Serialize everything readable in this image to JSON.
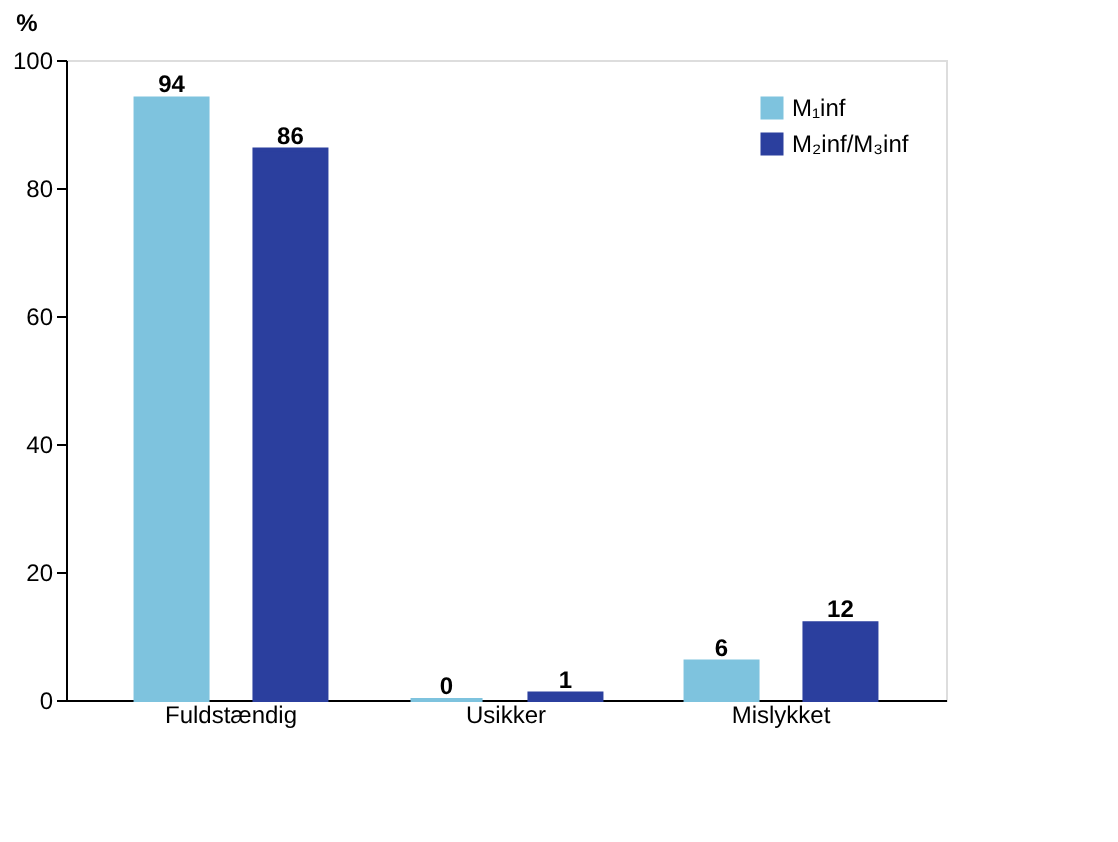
{
  "chart_data": {
    "type": "bar",
    "ylabel": "%",
    "categories": [
      "Fuldstændig",
      "Usikker",
      "Mislykket"
    ],
    "series": [
      {
        "name": "M₁inf",
        "color": "#7ec3de",
        "values": [
          94,
          0,
          6
        ]
      },
      {
        "name": "M₂inf/M₃inf",
        "color": "#2b3f9e",
        "values": [
          86,
          1,
          12
        ]
      }
    ],
    "ylim": [
      0,
      100
    ],
    "yticks": [
      0,
      20,
      40,
      60,
      80,
      100
    ],
    "grid": false,
    "legend": "top right",
    "data_labels": true
  }
}
